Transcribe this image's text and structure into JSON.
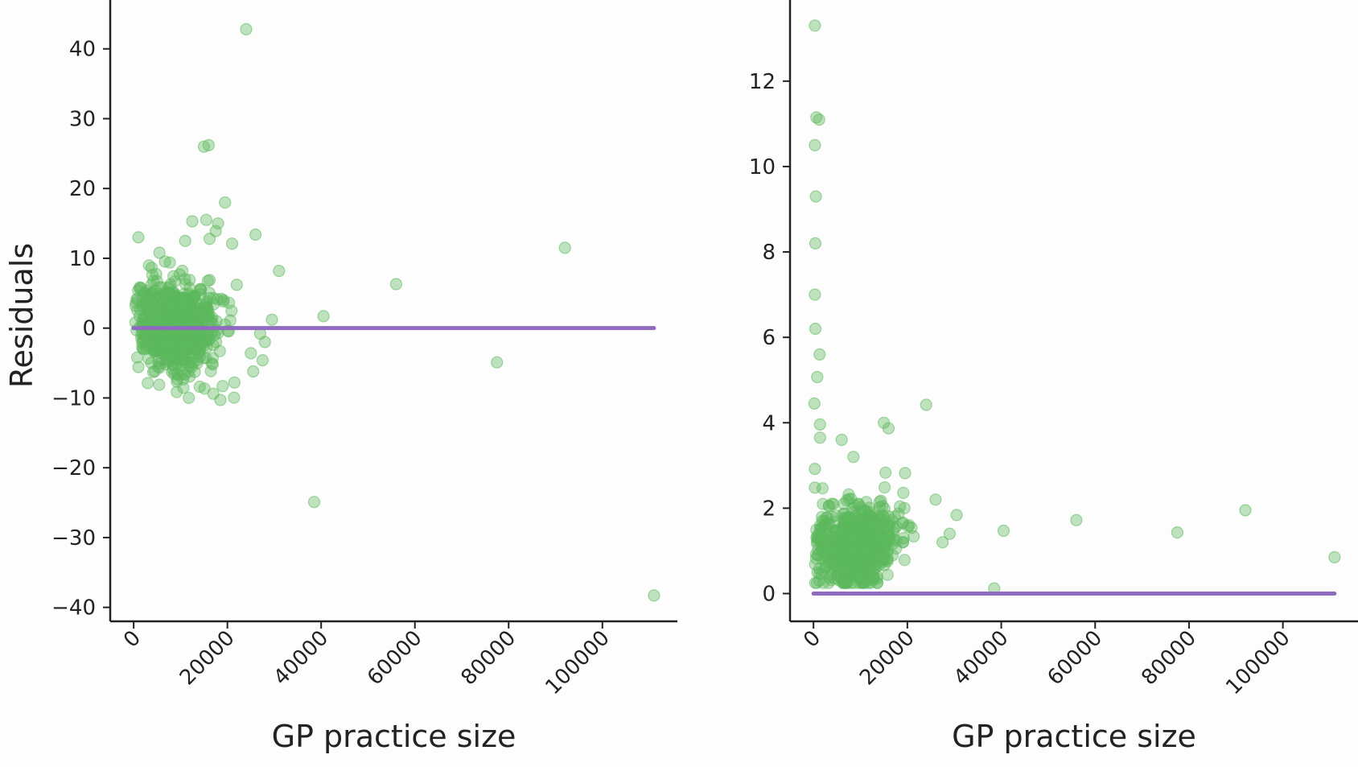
{
  "chart_data": [
    {
      "type": "scatter",
      "title": "",
      "xlabel": "GP practice size",
      "ylabel": "Residuals",
      "xlim": [
        -5000,
        116000
      ],
      "ylim": [
        -42,
        47
      ],
      "xticks": [
        0,
        20000,
        40000,
        60000,
        80000,
        100000
      ],
      "yticks": [
        -40,
        -30,
        -20,
        -10,
        0,
        10,
        20,
        30,
        40
      ],
      "point_color": "#5cb85c",
      "line_color": "#8e6bbf",
      "grid": false,
      "legend": "none",
      "reference_line": {
        "x": [
          0,
          111000
        ],
        "y": [
          0,
          0
        ]
      },
      "cluster": {
        "x_range": [
          300,
          30000
        ],
        "y_range": [
          -10,
          14
        ],
        "count": 700
      },
      "points": [
        {
          "x": 24000,
          "y": 42.8
        },
        {
          "x": 15000,
          "y": 26.0
        },
        {
          "x": 16000,
          "y": 26.2
        },
        {
          "x": 19500,
          "y": 18.0
        },
        {
          "x": 18000,
          "y": 15.0
        },
        {
          "x": 15500,
          "y": 15.5
        },
        {
          "x": 12500,
          "y": 15.3
        },
        {
          "x": 26000,
          "y": 13.4
        },
        {
          "x": 1000,
          "y": 13.0
        },
        {
          "x": 17500,
          "y": 13.9
        },
        {
          "x": 16200,
          "y": 12.8
        },
        {
          "x": 21000,
          "y": 12.1
        },
        {
          "x": 11000,
          "y": 12.5
        },
        {
          "x": 5500,
          "y": 10.8
        },
        {
          "x": 31000,
          "y": 8.2
        },
        {
          "x": 22000,
          "y": 6.2
        },
        {
          "x": 29500,
          "y": 1.2
        },
        {
          "x": 27000,
          "y": -0.8
        },
        {
          "x": 28000,
          "y": -2.0
        },
        {
          "x": 25000,
          "y": -3.6
        },
        {
          "x": 27500,
          "y": -4.6
        },
        {
          "x": 25500,
          "y": -6.2
        },
        {
          "x": 21500,
          "y": -7.8
        },
        {
          "x": 19000,
          "y": -8.3
        },
        {
          "x": 17000,
          "y": -9.4
        },
        {
          "x": 18500,
          "y": -10.3
        },
        {
          "x": 40500,
          "y": 1.7
        },
        {
          "x": 56000,
          "y": 6.3
        },
        {
          "x": 38500,
          "y": -24.9
        },
        {
          "x": 77500,
          "y": -4.9
        },
        {
          "x": 92000,
          "y": 11.5
        },
        {
          "x": 111000,
          "y": -38.3
        }
      ]
    },
    {
      "type": "scatter",
      "title": "",
      "xlabel": "GP practice size",
      "ylabel": "",
      "xlim": [
        -5000,
        116000
      ],
      "ylim": [
        -0.65,
        13.9
      ],
      "xticks": [
        0,
        20000,
        40000,
        60000,
        80000,
        100000
      ],
      "yticks": [
        0,
        2,
        4,
        6,
        8,
        10,
        12
      ],
      "point_color": "#5cb85c",
      "line_color": "#8e6bbf",
      "grid": false,
      "legend": "none",
      "reference_line": {
        "x": [
          0,
          111000
        ],
        "y": [
          0,
          0
        ]
      },
      "cluster": {
        "x_range": [
          300,
          30000
        ],
        "y_range": [
          0.25,
          3.2
        ],
        "count": 700
      },
      "points": [
        {
          "x": 300,
          "y": 13.3
        },
        {
          "x": 600,
          "y": 11.15
        },
        {
          "x": 1200,
          "y": 11.1
        },
        {
          "x": 300,
          "y": 10.5
        },
        {
          "x": 500,
          "y": 9.3
        },
        {
          "x": 400,
          "y": 8.2
        },
        {
          "x": 300,
          "y": 7.0
        },
        {
          "x": 400,
          "y": 6.2
        },
        {
          "x": 1300,
          "y": 5.6
        },
        {
          "x": 800,
          "y": 5.07
        },
        {
          "x": 200,
          "y": 4.45
        },
        {
          "x": 1400,
          "y": 3.96
        },
        {
          "x": 1400,
          "y": 3.65
        },
        {
          "x": 6000,
          "y": 3.6
        },
        {
          "x": 300,
          "y": 2.92
        },
        {
          "x": 300,
          "y": 2.48
        },
        {
          "x": 8500,
          "y": 3.2
        },
        {
          "x": 15000,
          "y": 4.0
        },
        {
          "x": 16000,
          "y": 3.87
        },
        {
          "x": 24000,
          "y": 4.42
        },
        {
          "x": 19500,
          "y": 2.82
        },
        {
          "x": 26000,
          "y": 2.2
        },
        {
          "x": 30500,
          "y": 1.84
        },
        {
          "x": 29000,
          "y": 1.4
        },
        {
          "x": 27500,
          "y": 1.2
        },
        {
          "x": 40500,
          "y": 1.47
        },
        {
          "x": 38500,
          "y": 0.12
        },
        {
          "x": 56000,
          "y": 1.72
        },
        {
          "x": 77500,
          "y": 1.43
        },
        {
          "x": 92000,
          "y": 1.95
        },
        {
          "x": 111000,
          "y": 0.85
        }
      ]
    }
  ]
}
